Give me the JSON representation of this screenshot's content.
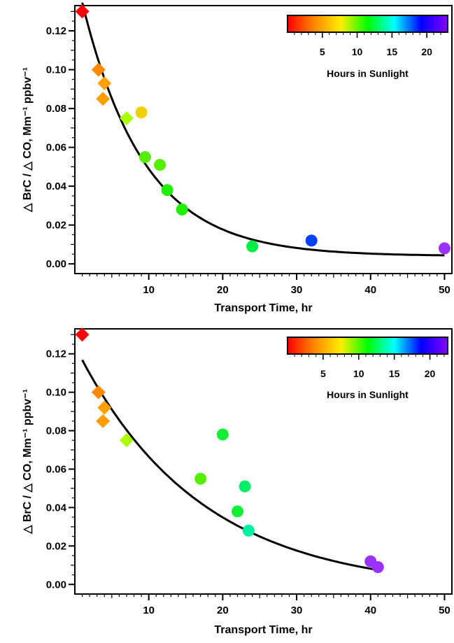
{
  "chart_data": [
    {
      "type": "scatter",
      "xlabel": "Transport Time, hr",
      "ylabel": "△ BrC / △ CO, Mm⁻¹ ppbv⁻¹",
      "xlim": [
        0,
        51
      ],
      "ylim": [
        -0.005,
        0.133
      ],
      "xticks": [
        10,
        20,
        30,
        40,
        50
      ],
      "yticks": [
        "0.00",
        "0.02",
        "0.04",
        "0.06",
        "0.08",
        "0.10",
        "0.12"
      ],
      "grid": false,
      "colorbar": {
        "title": "Hours in Sunlight",
        "ticks": [
          5,
          10,
          15,
          20
        ],
        "range": [
          0,
          23
        ],
        "colors": [
          "#ff0000",
          "#ff8800",
          "#ffee00",
          "#00ff00",
          "#00ffff",
          "#0000ff",
          "#8800ff"
        ],
        "position": "top-right"
      },
      "series": [
        {
          "marker": "diamond",
          "points": [
            {
              "x": 1.0,
              "y": 0.13,
              "hours": 0.5,
              "color": "#ff0000"
            },
            {
              "x": 3.2,
              "y": 0.1,
              "hours": 2.5,
              "color": "#ff8800"
            },
            {
              "x": 4.0,
              "y": 0.093,
              "hours": 3.0,
              "color": "#ffa000"
            },
            {
              "x": 3.8,
              "y": 0.085,
              "hours": 3.0,
              "color": "#ff9d00"
            },
            {
              "x": 7.0,
              "y": 0.075,
              "hours": 7.0,
              "color": "#aaff00"
            }
          ]
        },
        {
          "marker": "circle",
          "points": [
            {
              "x": 9.0,
              "y": 0.078,
              "hours": 5.0,
              "color": "#f0d000"
            },
            {
              "x": 9.5,
              "y": 0.055,
              "hours": 8.5,
              "color": "#55ee00"
            },
            {
              "x": 11.5,
              "y": 0.051,
              "hours": 8.5,
              "color": "#55ee00"
            },
            {
              "x": 12.5,
              "y": 0.038,
              "hours": 10.0,
              "color": "#22ee00"
            },
            {
              "x": 14.5,
              "y": 0.028,
              "hours": 10.0,
              "color": "#22ee00"
            },
            {
              "x": 24.0,
              "y": 0.009,
              "hours": 11.5,
              "color": "#00ee44"
            },
            {
              "x": 32.0,
              "y": 0.012,
              "hours": 20.0,
              "color": "#0040ff"
            },
            {
              "x": 50.0,
              "y": 0.008,
              "hours": 23.0,
              "color": "#9b30ff"
            }
          ]
        }
      ],
      "fit": {
        "type": "exponential",
        "a": 0.1305,
        "k": 0.1186,
        "c": 0.004,
        "x_from": 1.0,
        "x_to": 50.0
      }
    },
    {
      "type": "scatter",
      "xlabel": "Transport Time, hr",
      "ylabel": "△ BrC / △ CO, Mm⁻¹ ppbv⁻¹",
      "xlim": [
        0,
        51
      ],
      "ylim": [
        -0.005,
        0.133
      ],
      "xticks": [
        10,
        20,
        30,
        40,
        50
      ],
      "yticks": [
        "0.00",
        "0.02",
        "0.04",
        "0.06",
        "0.08",
        "0.10",
        "0.12"
      ],
      "grid": false,
      "colorbar": {
        "title": "Hours in Sunlight",
        "ticks": [
          5,
          10,
          15,
          20
        ],
        "range": [
          0,
          22.5
        ],
        "colors": [
          "#ff0000",
          "#ff8800",
          "#ffee00",
          "#00ff00",
          "#00ffff",
          "#0000ff",
          "#8800ff"
        ],
        "position": "top-right"
      },
      "series": [
        {
          "marker": "diamond",
          "points": [
            {
              "x": 1.0,
              "y": 0.13,
              "hours": 0.5,
              "color": "#ff0000"
            },
            {
              "x": 3.2,
              "y": 0.1,
              "hours": 2.5,
              "color": "#ff8800"
            },
            {
              "x": 4.0,
              "y": 0.092,
              "hours": 3.0,
              "color": "#ffa000"
            },
            {
              "x": 3.8,
              "y": 0.085,
              "hours": 3.0,
              "color": "#ff9d00"
            },
            {
              "x": 7.0,
              "y": 0.075,
              "hours": 7.0,
              "color": "#aaff00"
            }
          ]
        },
        {
          "marker": "circle",
          "points": [
            {
              "x": 20.0,
              "y": 0.078,
              "hours": 10.5,
              "color": "#11ee33"
            },
            {
              "x": 17.0,
              "y": 0.055,
              "hours": 8.5,
              "color": "#55ee00"
            },
            {
              "x": 23.0,
              "y": 0.051,
              "hours": 11.5,
              "color": "#00ee66"
            },
            {
              "x": 22.0,
              "y": 0.038,
              "hours": 10.5,
              "color": "#11ee33"
            },
            {
              "x": 23.5,
              "y": 0.028,
              "hours": 12.0,
              "color": "#00f0a0"
            },
            {
              "x": 40.0,
              "y": 0.012,
              "hours": 22.0,
              "color": "#9b30ff"
            },
            {
              "x": 41.0,
              "y": 0.009,
              "hours": 22.0,
              "color": "#9b30ff"
            }
          ]
        }
      ],
      "fit": {
        "type": "exponential",
        "a": 0.12,
        "k": 0.0604,
        "c": -0.0032,
        "x_from": 1.0,
        "x_to": 41.0
      }
    }
  ]
}
